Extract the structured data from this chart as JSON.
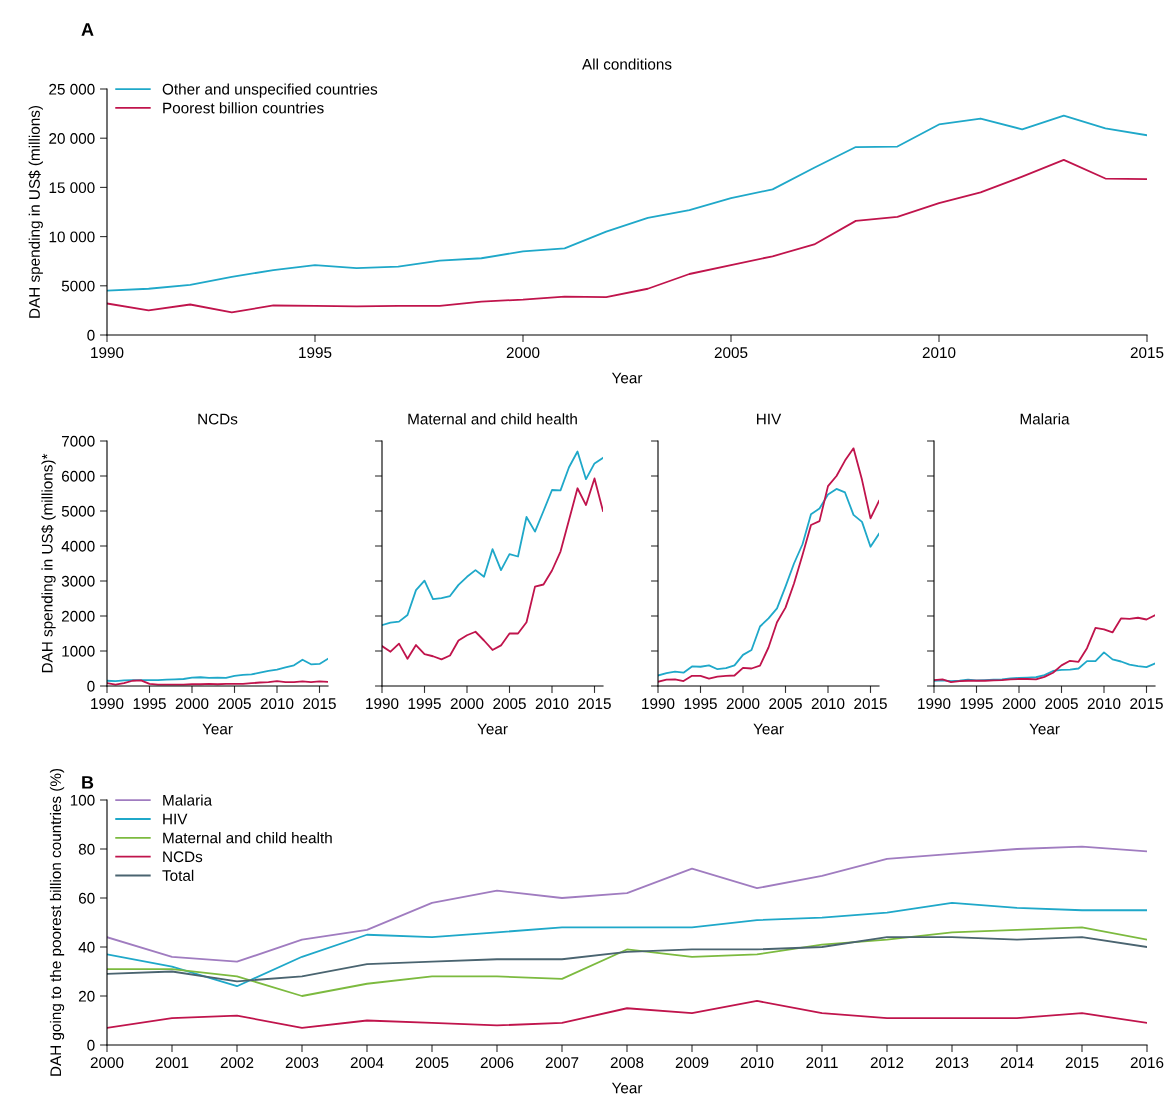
{
  "chart_data": [
    {
      "type": "line",
      "title": "All conditions",
      "xlabel": "Year",
      "ylabel": "DAH spending in US$ (millions)",
      "annotations": [
        "A"
      ],
      "legend": "top left",
      "x": [
        1990,
        1991,
        1992,
        1993,
        1994,
        1995,
        1996,
        1997,
        1998,
        1999,
        2000,
        2001,
        2002,
        2003,
        2004,
        2005,
        2006,
        2007,
        2008,
        2009,
        2010,
        2011,
        2012,
        2013,
        2014,
        2015
      ],
      "xlim": [
        1990,
        2015
      ],
      "xticks": [
        1990,
        1995,
        2000,
        2005,
        2010,
        2015
      ],
      "ylim": [
        0,
        25000
      ],
      "yticks": [
        0,
        5000,
        {
          "value": 10000,
          "label": "10 000"
        },
        {
          "value": 15000,
          "label": "15 000"
        },
        {
          "value": 20000,
          "label": "20 000"
        },
        {
          "value": 25000,
          "label": "25 000"
        }
      ],
      "series": [
        {
          "name": "Other and unspecified countries",
          "color": "#1fa8c9",
          "values": [
            4500,
            4700,
            5100,
            5900,
            6600,
            7100,
            6800,
            6950,
            7550,
            7800,
            8500,
            8800,
            10500,
            11900,
            12700,
            13900,
            14800,
            17000,
            19100,
            19150,
            21400,
            22000,
            20900,
            22300,
            21000,
            20300
          ]
        },
        {
          "name": "Poorest billion countries",
          "color": "#c0144c",
          "values": [
            3200,
            2500,
            3100,
            2300,
            3000,
            2950,
            2900,
            2950,
            2950,
            3400,
            3600,
            3900,
            3850,
            4700,
            6200,
            7100,
            8000,
            9200,
            11600,
            12000,
            13400,
            14500,
            16100,
            17800,
            15900,
            15850
          ]
        }
      ]
    },
    {
      "type": "line",
      "title": "NCDs",
      "xlabel": "Year",
      "ylabel": "DAH spending in US$ (millions)*",
      "x": [
        1990,
        1991,
        1992,
        1993,
        1994,
        1995,
        1996,
        1997,
        1998,
        1999,
        2000,
        2001,
        2002,
        2003,
        2004,
        2005,
        2006,
        2007,
        2008,
        2009,
        2010,
        2011,
        2012,
        2013,
        2014,
        2015,
        2016
      ],
      "xlim": [
        1990,
        2016
      ],
      "xticks": [
        1990,
        1995,
        2000,
        2005,
        2010,
        2015
      ],
      "ylim": [
        0,
        7000
      ],
      "yticks": [
        0,
        1000,
        2000,
        3000,
        4000,
        5000,
        6000,
        7000
      ],
      "series": [
        {
          "color": "#1fa8c9",
          "values": [
            150,
            140,
            160,
            170,
            170,
            170,
            170,
            180,
            190,
            200,
            240,
            250,
            230,
            240,
            230,
            290,
            320,
            330,
            380,
            430,
            470,
            530,
            590,
            750,
            620,
            630,
            780
          ]
        },
        {
          "color": "#c0144c",
          "values": [
            80,
            40,
            80,
            150,
            160,
            60,
            40,
            40,
            40,
            40,
            50,
            50,
            60,
            50,
            60,
            60,
            60,
            80,
            100,
            110,
            140,
            110,
            110,
            130,
            110,
            130,
            120
          ]
        }
      ]
    },
    {
      "type": "line",
      "title": "Maternal and child health",
      "xlabel": "Year",
      "tick_labels": "x",
      "x": [
        1990,
        1991,
        1992,
        1993,
        1994,
        1995,
        1996,
        1997,
        1998,
        1999,
        2000,
        2001,
        2002,
        2003,
        2004,
        2005,
        2006,
        2007,
        2008,
        2009,
        2010,
        2011,
        2012,
        2013,
        2014,
        2015,
        2016
      ],
      "xlim": [
        1990,
        2016
      ],
      "xticks": [
        1990,
        1995,
        2000,
        2005,
        2010,
        2015
      ],
      "ylim": [
        0,
        7000
      ],
      "yticks": [
        0,
        1000,
        2000,
        3000,
        4000,
        5000,
        6000,
        7000
      ],
      "series": [
        {
          "color": "#1fa8c9",
          "values": [
            1740,
            1810,
            1840,
            2030,
            2740,
            3010,
            2480,
            2510,
            2570,
            2890,
            3120,
            3310,
            3120,
            3910,
            3310,
            3770,
            3700,
            4830,
            4410,
            5000,
            5600,
            5590,
            6250,
            6700,
            5910,
            6360,
            6520
          ]
        },
        {
          "color": "#c0144c",
          "values": [
            1140,
            980,
            1210,
            780,
            1170,
            910,
            850,
            760,
            870,
            1300,
            1450,
            1550,
            1300,
            1030,
            1160,
            1500,
            1500,
            1820,
            2840,
            2900,
            3300,
            3840,
            4740,
            5650,
            5170,
            5930,
            5000
          ]
        }
      ]
    },
    {
      "type": "line",
      "title": "HIV",
      "xlabel": "Year",
      "tick_labels": "x",
      "x": [
        1990,
        1991,
        1992,
        1993,
        1994,
        1995,
        1996,
        1997,
        1998,
        1999,
        2000,
        2001,
        2002,
        2003,
        2004,
        2005,
        2006,
        2007,
        2008,
        2009,
        2010,
        2011,
        2012,
        2013,
        2014,
        2015,
        2016
      ],
      "xlim": [
        1990,
        2016
      ],
      "xticks": [
        1990,
        1995,
        2000,
        2005,
        2010,
        2015
      ],
      "ylim": [
        0,
        7000
      ],
      "yticks": [
        0,
        1000,
        2000,
        3000,
        4000,
        5000,
        6000,
        7000
      ],
      "series": [
        {
          "color": "#1fa8c9",
          "values": [
            300,
            370,
            410,
            380,
            560,
            550,
            590,
            480,
            510,
            590,
            890,
            1030,
            1700,
            1930,
            2220,
            2840,
            3500,
            4050,
            4910,
            5070,
            5470,
            5630,
            5530,
            4890,
            4690,
            3980,
            4350
          ]
        },
        {
          "color": "#c0144c",
          "values": [
            120,
            180,
            190,
            140,
            290,
            290,
            210,
            270,
            290,
            300,
            520,
            500,
            580,
            1100,
            1820,
            2240,
            2930,
            3740,
            4600,
            4710,
            5710,
            6000,
            6440,
            6790,
            5890,
            4790,
            5290
          ]
        }
      ]
    },
    {
      "type": "line",
      "title": "Malaria",
      "xlabel": "Year",
      "tick_labels": "x",
      "x": [
        1990,
        1991,
        1992,
        1993,
        1994,
        1995,
        1996,
        1997,
        1998,
        1999,
        2000,
        2001,
        2002,
        2003,
        2004,
        2005,
        2006,
        2007,
        2008,
        2009,
        2010,
        2011,
        2012,
        2013,
        2014,
        2015,
        2016
      ],
      "xlim": [
        1990,
        2016
      ],
      "xticks": [
        1990,
        1995,
        2000,
        2005,
        2010,
        2015
      ],
      "ylim": [
        0,
        7000
      ],
      "yticks": [
        0,
        1000,
        2000,
        3000,
        4000,
        5000,
        6000,
        7000
      ],
      "series": [
        {
          "color": "#1fa8c9",
          "values": [
            150,
            160,
            140,
            150,
            180,
            160,
            170,
            180,
            190,
            220,
            230,
            240,
            250,
            310,
            430,
            460,
            470,
            500,
            710,
            710,
            960,
            760,
            700,
            610,
            570,
            540,
            640
          ]
        },
        {
          "color": "#c0144c",
          "values": [
            170,
            190,
            110,
            140,
            150,
            150,
            150,
            160,
            170,
            190,
            200,
            200,
            190,
            260,
            380,
            590,
            720,
            690,
            1080,
            1660,
            1620,
            1530,
            1930,
            1920,
            1950,
            1900,
            2020
          ]
        }
      ]
    },
    {
      "type": "line",
      "xlabel": "Year",
      "ylabel": "DAH going to the poorest billion countries (%)",
      "annotations": [
        "B"
      ],
      "legend": "top left",
      "x": [
        2000,
        2001,
        2002,
        2003,
        2004,
        2005,
        2006,
        2007,
        2008,
        2009,
        2010,
        2011,
        2012,
        2013,
        2014,
        2015,
        2016
      ],
      "xlim": [
        2000,
        2016
      ],
      "xticks": [
        2000,
        2001,
        2002,
        2003,
        2004,
        2005,
        2006,
        2007,
        2008,
        2009,
        2010,
        2011,
        2012,
        2013,
        2014,
        2015,
        2016
      ],
      "ylim": [
        0,
        100
      ],
      "yticks": [
        0,
        20,
        40,
        60,
        80,
        100
      ],
      "series": [
        {
          "name": "Malaria",
          "color": "#a07cc0",
          "values": [
            44,
            36,
            34,
            43,
            47,
            58,
            63,
            60,
            62,
            72,
            64,
            69,
            76,
            78,
            80,
            81,
            79
          ]
        },
        {
          "name": "HIV",
          "color": "#1fa8c9",
          "values": [
            37,
            32,
            24,
            36,
            45,
            44,
            46,
            48,
            48,
            48,
            51,
            52,
            54,
            58,
            56,
            55,
            55
          ]
        },
        {
          "name": "Maternal and child health",
          "color": "#7cba3f",
          "values": [
            31,
            31,
            28,
            20,
            25,
            28,
            28,
            27,
            39,
            36,
            37,
            41,
            43,
            46,
            47,
            48,
            43
          ]
        },
        {
          "name": "NCDs",
          "color": "#c0144c",
          "values": [
            7,
            11,
            12,
            7,
            10,
            9,
            8,
            9,
            15,
            13,
            18,
            13,
            11,
            11,
            11,
            13,
            9
          ]
        },
        {
          "name": "Total",
          "color": "#4a6470",
          "values": [
            29,
            30,
            26,
            28,
            33,
            34,
            35,
            35,
            38,
            39,
            39,
            40,
            44,
            44,
            43,
            44,
            40
          ]
        }
      ]
    }
  ]
}
